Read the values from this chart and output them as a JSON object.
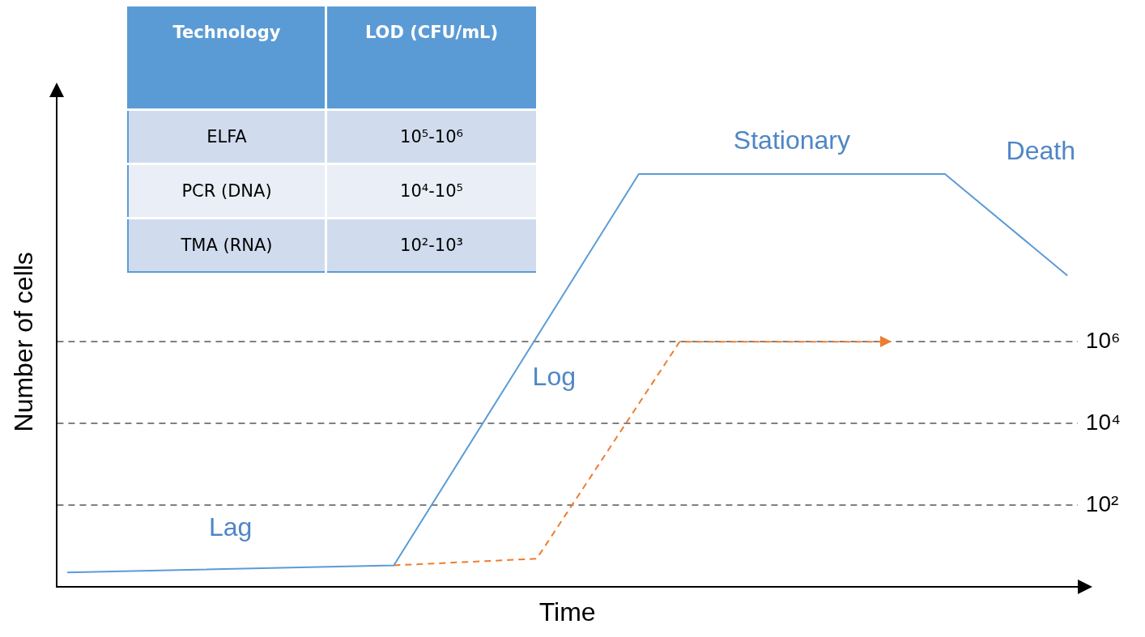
{
  "chart_data": [
    {
      "type": "line",
      "xlabel": "Time",
      "ylabel": "Number of cells",
      "log": "y",
      "grid": "y",
      "legend": false,
      "tick_labels": "y",
      "marker": "none",
      "ylim": [
        1,
        1000000000000
      ],
      "yticks": [
        {
          "value": 100,
          "label": "10²"
        },
        {
          "value": 10000,
          "label": "10⁴"
        },
        {
          "value": 1000000,
          "label": "10⁶"
        }
      ],
      "categories": [
        null,
        null,
        null,
        null,
        null,
        null,
        null,
        null,
        null,
        null,
        null,
        null,
        null,
        null,
        null,
        null,
        null,
        null,
        null,
        null,
        null,
        null,
        null,
        null,
        null,
        null,
        null,
        null,
        null,
        null,
        null,
        null,
        null,
        null,
        null,
        null,
        null,
        null,
        null,
        null,
        null,
        null,
        null,
        null,
        null,
        null,
        null,
        null,
        null,
        null
      ],
      "series": [
        {
          "color": "#5b9bd5",
          "line_style": "solid",
          "values": [
            2.2,
            null,
            null,
            null,
            null,
            null,
            null,
            null,
            null,
            null,
            null,
            null,
            null,
            null,
            null,
            null,
            3.3,
            null,
            null,
            null,
            null,
            null,
            null,
            null,
            null,
            null,
            null,
            null,
            13000000000,
            null,
            null,
            null,
            null,
            null,
            null,
            null,
            null,
            null,
            null,
            null,
            null,
            null,
            null,
            13000000000,
            null,
            null,
            null,
            null,
            null,
            42000000
          ]
        },
        {
          "color": "#ed7d31",
          "line_style": "dashed",
          "values": [
            null,
            null,
            null,
            null,
            null,
            null,
            null,
            null,
            null,
            null,
            null,
            null,
            null,
            null,
            null,
            null,
            3.3,
            null,
            null,
            null,
            null,
            null,
            null,
            4.8,
            null,
            null,
            null,
            null,
            null,
            null,
            1000000,
            null,
            null,
            null,
            null,
            null,
            null,
            null,
            null,
            null,
            1000000,
            null,
            null,
            null,
            null,
            null,
            null,
            null,
            null,
            null
          ]
        }
      ],
      "annotations": [
        "Lag",
        "Log",
        "Stationary",
        "Death"
      ]
    },
    {
      "type": "other",
      "categories": [
        "Technology",
        "LOD (CFU/mL)"
      ],
      "cell_labels": [
        [
          "ELFA",
          "10⁵-10⁶"
        ],
        [
          "PCR (DNA)",
          "10⁴-10⁵"
        ],
        [
          "TMA (RNA)",
          "10²-10³"
        ]
      ]
    }
  ]
}
